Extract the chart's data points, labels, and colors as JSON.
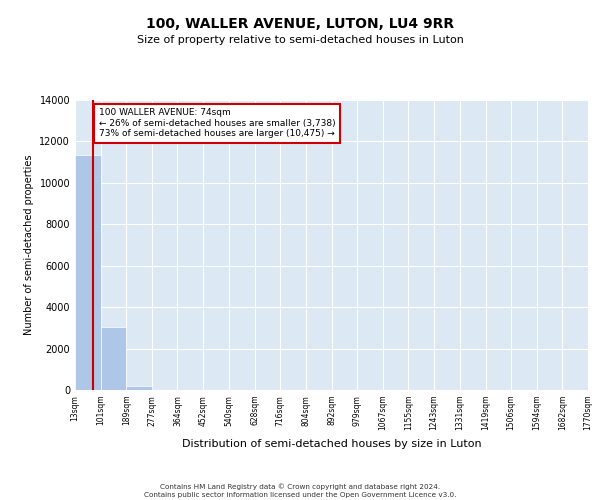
{
  "title": "100, WALLER AVENUE, LUTON, LU4 9RR",
  "subtitle": "Size of property relative to semi-detached houses in Luton",
  "xlabel": "Distribution of semi-detached houses by size in Luton",
  "ylabel": "Number of semi-detached properties",
  "property_size": 74,
  "annotation_text_line1": "100 WALLER AVENUE: 74sqm",
  "annotation_text_line2": "← 26% of semi-detached houses are smaller (3,738)",
  "annotation_text_line3": "73% of semi-detached houses are larger (10,475) →",
  "bar_color": "#aec6e8",
  "red_line_color": "#cc0000",
  "annotation_box_edgecolor": "#cc0000",
  "annotation_box_facecolor": "#ffffff",
  "grid_color": "#ffffff",
  "background_color": "#dce9f5",
  "ylim": [
    0,
    14000
  ],
  "yticks": [
    0,
    2000,
    4000,
    6000,
    8000,
    10000,
    12000,
    14000
  ],
  "bin_edges": [
    13,
    101,
    189,
    277,
    364,
    452,
    540,
    628,
    716,
    804,
    892,
    979,
    1067,
    1155,
    1243,
    1331,
    1419,
    1506,
    1594,
    1682,
    1770
  ],
  "bin_labels": [
    "13sqm",
    "101sqm",
    "189sqm",
    "277sqm",
    "364sqm",
    "452sqm",
    "540sqm",
    "628sqm",
    "716sqm",
    "804sqm",
    "892sqm",
    "979sqm",
    "1067sqm",
    "1155sqm",
    "1243sqm",
    "1331sqm",
    "1419sqm",
    "1506sqm",
    "1594sqm",
    "1682sqm",
    "1770sqm"
  ],
  "bar_heights": [
    11350,
    3050,
    200,
    0,
    0,
    0,
    0,
    0,
    0,
    0,
    0,
    0,
    0,
    0,
    0,
    0,
    0,
    0,
    0,
    0
  ],
  "footer_line1": "Contains HM Land Registry data © Crown copyright and database right 2024.",
  "footer_line2": "Contains public sector information licensed under the Open Government Licence v3.0."
}
